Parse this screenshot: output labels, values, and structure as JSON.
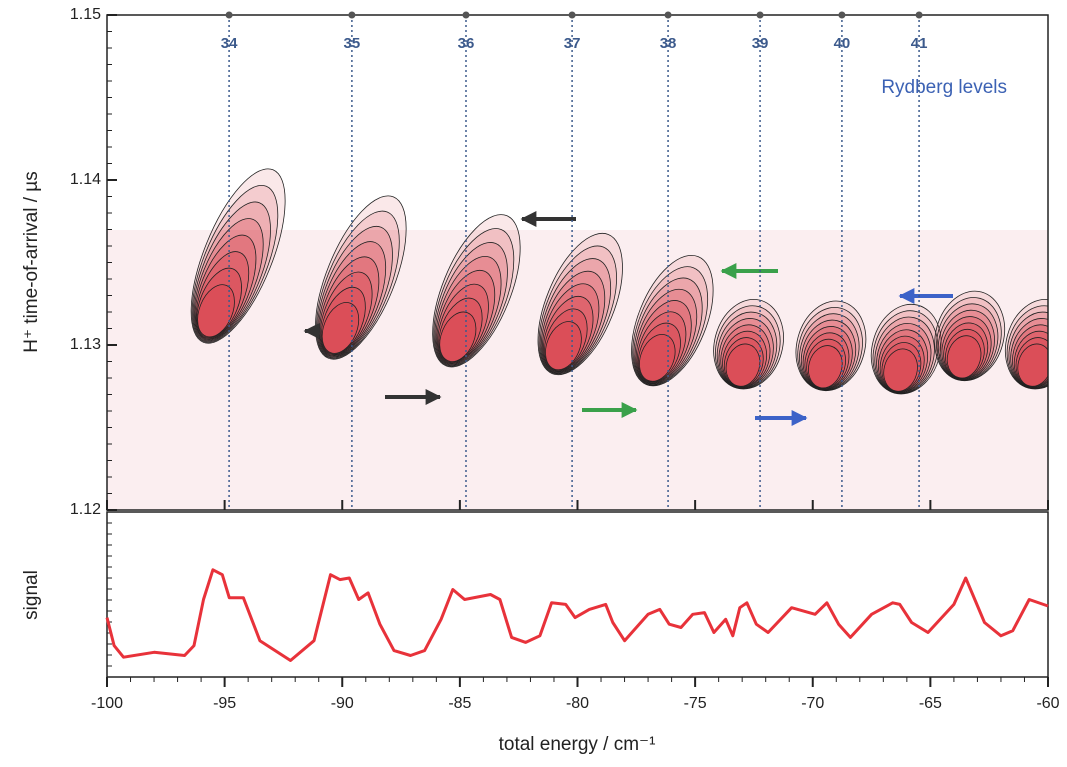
{
  "chart_data": [
    {
      "type": "contour",
      "ylabel": "H⁺ time-of-arrival / µs",
      "xlim": [
        -100,
        -60
      ],
      "ylim": [
        1.12,
        1.15
      ],
      "yticks": [
        1.12,
        1.13,
        1.14,
        1.15
      ],
      "color": "#d9404a",
      "peaks": {
        "x": [
          -95.5,
          -90.2,
          -85.2,
          -80.7,
          -76.7,
          -73.0,
          -69.5,
          -66.3,
          -63.6,
          -60.6
        ],
        "y": [
          1.1316,
          1.1306,
          1.1301,
          1.1296,
          1.1289,
          1.1286,
          1.1285,
          1.1283,
          1.1291,
          1.1286
        ]
      },
      "levels": {
        "n": [
          34,
          35,
          36,
          37,
          38,
          39,
          40,
          41
        ],
        "x": [
          -94.81,
          -89.59,
          -84.74,
          -80.23,
          -76.15,
          -72.24,
          -68.76,
          -65.48
        ],
        "color": "#3c5a8c"
      },
      "annotation": "Rydberg levels"
    },
    {
      "type": "line",
      "xlabel": "total energy  /  cm⁻¹",
      "ylabel": "signal",
      "xlim": [
        -100,
        -60
      ],
      "xticks": [
        -100,
        -95,
        -90,
        -85,
        -80,
        -75,
        -70,
        -65,
        -60
      ],
      "ylim": [
        0,
        1
      ],
      "color": "#e8323a",
      "x": [
        -100.0,
        -99.7,
        -99.3,
        -98.0,
        -96.7,
        -96.3,
        -95.9,
        -95.5,
        -95.1,
        -94.8,
        -94.2,
        -93.5,
        -92.2,
        -91.2,
        -90.5,
        -90.1,
        -89.7,
        -89.3,
        -88.9,
        -88.4,
        -87.8,
        -87.1,
        -86.5,
        -85.8,
        -85.3,
        -84.8,
        -83.7,
        -83.3,
        -82.8,
        -82.2,
        -81.6,
        -81.1,
        -80.5,
        -80.1,
        -79.5,
        -78.8,
        -78.5,
        -78.0,
        -77.0,
        -76.5,
        -76.1,
        -75.6,
        -75.1,
        -74.6,
        -74.2,
        -73.7,
        -73.4,
        -73.1,
        -72.8,
        -72.4,
        -71.9,
        -70.9,
        -69.9,
        -69.4,
        -68.9,
        -68.4,
        -67.5,
        -66.6,
        -66.3,
        -65.8,
        -65.1,
        -64.0,
        -63.5,
        -63.2,
        -62.7,
        -62.0,
        -61.5,
        -60.8,
        -60.0
      ],
      "values": [
        0.36,
        0.19,
        0.12,
        0.15,
        0.13,
        0.19,
        0.47,
        0.65,
        0.62,
        0.48,
        0.48,
        0.22,
        0.1,
        0.22,
        0.62,
        0.59,
        0.6,
        0.47,
        0.51,
        0.32,
        0.16,
        0.13,
        0.16,
        0.35,
        0.53,
        0.47,
        0.5,
        0.47,
        0.24,
        0.21,
        0.25,
        0.45,
        0.44,
        0.36,
        0.41,
        0.44,
        0.33,
        0.22,
        0.38,
        0.41,
        0.32,
        0.3,
        0.38,
        0.39,
        0.27,
        0.35,
        0.25,
        0.42,
        0.45,
        0.32,
        0.27,
        0.42,
        0.38,
        0.45,
        0.32,
        0.24,
        0.38,
        0.45,
        0.44,
        0.33,
        0.27,
        0.44,
        0.6,
        0.5,
        0.33,
        0.25,
        0.28,
        0.47,
        0.43
      ]
    }
  ]
}
